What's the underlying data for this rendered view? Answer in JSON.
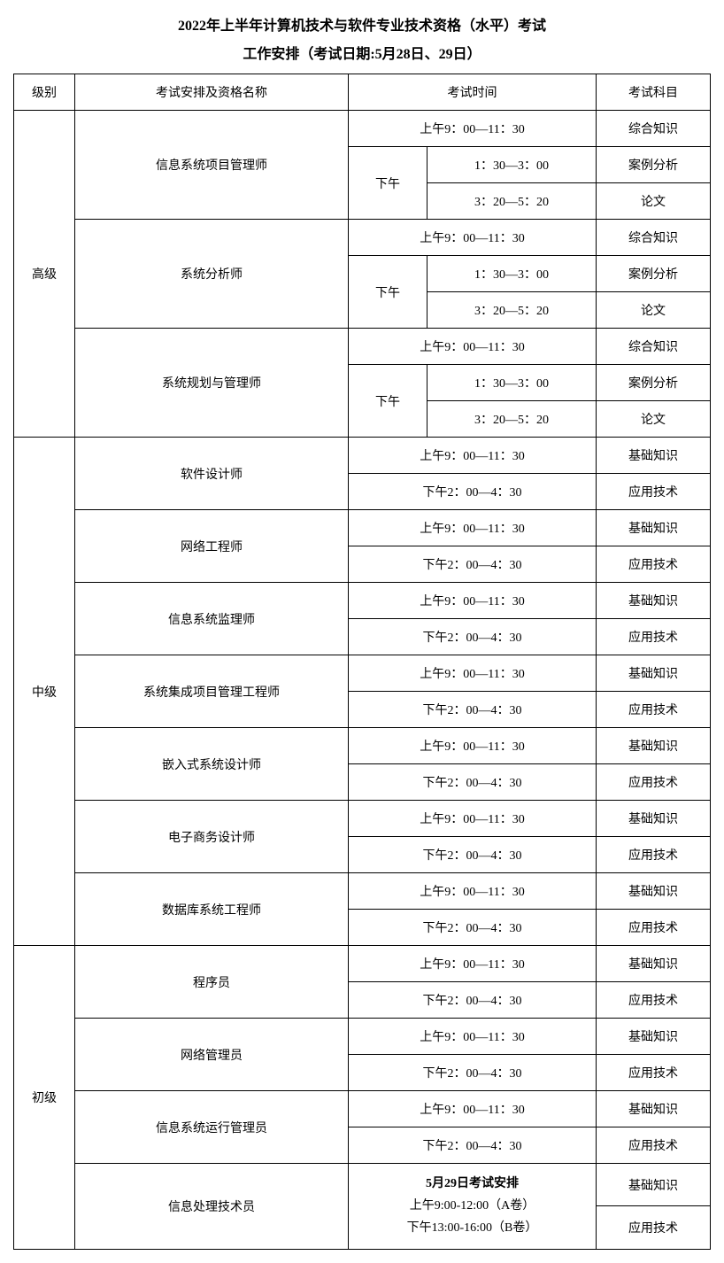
{
  "title": "2022年上半年计算机技术与软件专业技术资格（水平）考试",
  "subtitle": "工作安排（考试日期:5月28日、29日）",
  "header": {
    "level": "级别",
    "name": "考试安排及资格名称",
    "time": "考试时间",
    "subject": "考试科目"
  },
  "labels": {
    "morning": "上午9：00—11：30",
    "afternoon": "下午",
    "pm1": "1：30—3：00",
    "pm2": "3：20—5：20",
    "pm_mid": "下午2：00—4：30"
  },
  "subjects": {
    "comprehensive": "综合知识",
    "case": "案例分析",
    "essay": "论文",
    "basic": "基础知识",
    "applied": "应用技术"
  },
  "levels": {
    "senior": "高级",
    "mid": "中级",
    "junior": "初级"
  },
  "senior_quals": {
    "q1": "信息系统项目管理师",
    "q2": "系统分析师",
    "q3": "系统规划与管理师"
  },
  "mid_quals": {
    "q1": "软件设计师",
    "q2": "网络工程师",
    "q3": "信息系统监理师",
    "q4": "系统集成项目管理工程师",
    "q5": "嵌入式系统设计师",
    "q6": "电子商务设计师",
    "q7": "数据库系统工程师"
  },
  "junior_quals": {
    "q1": "程序员",
    "q2": "网络管理员",
    "q3": "信息系统运行管理员",
    "q4": "信息处理技术员"
  },
  "special": {
    "title": "5月29日考试安排",
    "line1": "上午9:00-12:00（A卷）",
    "line2": "下午13:00-16:00（B卷）"
  },
  "style": {
    "border_color": "#000000",
    "bg_color": "#ffffff",
    "text_color": "#000000",
    "title_fontsize": 16,
    "body_fontsize": 14
  }
}
